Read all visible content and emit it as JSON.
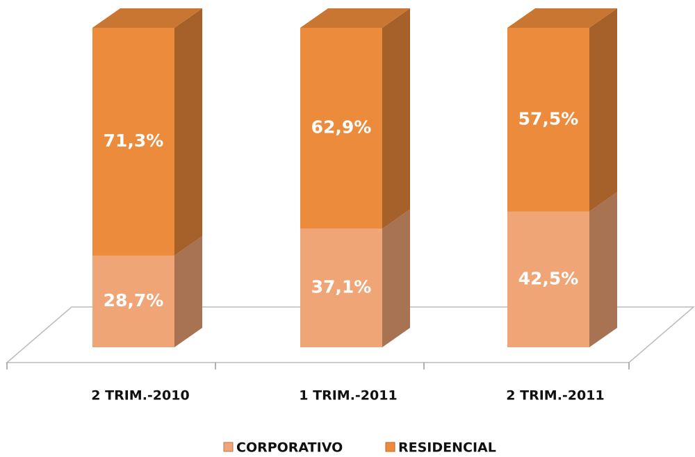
{
  "chart_data": {
    "type": "bar3d_stacked",
    "categories": [
      "2 TRIM.-2010",
      "1 TRIM.-2011",
      "2 TRIM.-2011"
    ],
    "series": [
      {
        "name": "CORPORATIVO",
        "color": "#f0a577",
        "values": [
          28.7,
          37.1,
          42.5
        ],
        "value_labels": [
          "28,7%",
          "37,1%",
          "42,5%"
        ]
      },
      {
        "name": "RESIDENCIAL",
        "color": "#ed8b3c",
        "values": [
          71.3,
          62.9,
          57.5
        ],
        "value_labels": [
          "71,3%",
          "62,9%",
          "57,5%"
        ]
      }
    ],
    "legend": "bottom"
  }
}
